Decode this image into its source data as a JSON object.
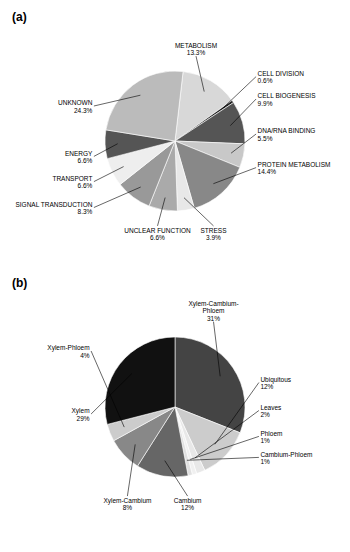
{
  "chart_data": [
    {
      "type": "pie",
      "title": "(a)",
      "categories": [
        "METABOLISM",
        "CELL DIVISION",
        "CELL BIOGENESIS",
        "DNA/RNA BINDING",
        "PROTEIN METABOLISM",
        "STRESS",
        "UNCLEAR FUNCTION",
        "SIGNAL TRANSDUCTION",
        "TRANSPORT",
        "ENERGY",
        "UNKNOWN"
      ],
      "values": [
        13.3,
        0.6,
        9.9,
        5.5,
        14.4,
        3.9,
        6.6,
        8.3,
        6.6,
        6.6,
        24.3
      ],
      "value_labels": [
        "13.3%",
        "0.6%",
        "9.9%",
        "5.5%",
        "14.4%",
        "3.9%",
        "6.6%",
        "8.3%",
        "6.6%",
        "6.6%",
        "24.3%"
      ],
      "colors": [
        "#d8d8d8",
        "#222222",
        "#555555",
        "#c8c8c8",
        "#888888",
        "#e8e8e8",
        "#aaaaaa",
        "#999999",
        "#eeeeee",
        "#555555",
        "#bbbbbb"
      ],
      "data_labels": true
    },
    {
      "type": "pie",
      "title": "(b)",
      "categories": [
        "Xylem-Cambium-\nPhloem",
        "Ubiquitous",
        "Leaves",
        "Phloem",
        "Cambium-Phloem",
        "Cambium",
        "Xylem-Cambium",
        "Xylem-Phloem",
        "Xylem"
      ],
      "values": [
        31,
        12,
        2,
        1,
        1,
        12,
        8,
        4,
        29
      ],
      "value_labels": [
        "31%",
        "12%",
        "2%",
        "1%",
        "1%",
        "12%",
        "8%",
        "4%",
        "29%"
      ],
      "colors": [
        "#444444",
        "#cccccc",
        "#e8e8e8",
        "#f0f0f0",
        "#e0e0e0",
        "#666666",
        "#888888",
        "#cccccc",
        "#111111"
      ],
      "data_labels": true
    }
  ]
}
